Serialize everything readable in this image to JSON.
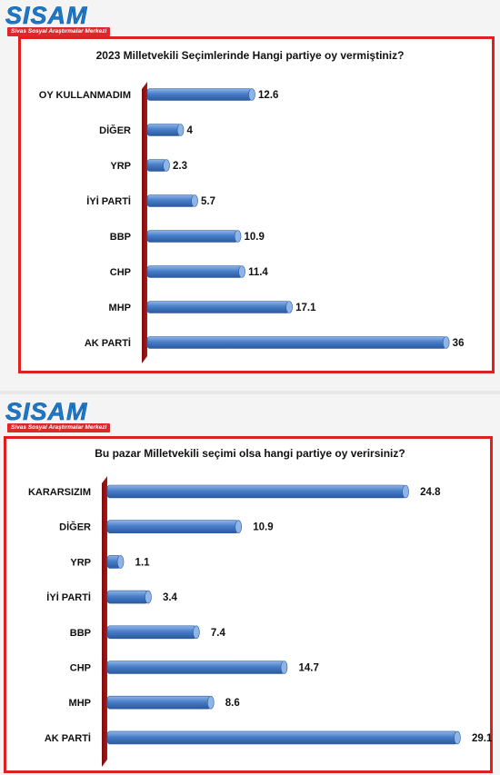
{
  "brand": {
    "logo_text": "SISAM",
    "logo_subtitle": "Sivas Sosyal Araştırmalar Merkezi"
  },
  "colors": {
    "frame": "#e0201c",
    "bar": "#4a7ec9",
    "bar_light": "#8fb5e6",
    "bar_dark": "#2a5a9e",
    "wall": "#b01818"
  },
  "chart_data": [
    {
      "type": "bar",
      "orientation": "horizontal",
      "title": "2023 Milletvekili Seçimlerinde Hangi partiye oy vermiştiniz?",
      "categories": [
        "OY KULLANMADIM",
        "DİĞER",
        "YRP",
        "İYİ PARTİ",
        "BBP",
        "CHP",
        "MHP",
        "AK PARTİ"
      ],
      "values": [
        12.6,
        4,
        2.3,
        5.7,
        10.9,
        11.4,
        17.1,
        36
      ],
      "value_labels": [
        "12.6",
        "4",
        "2.3",
        "5.7",
        "10.9",
        "11.4",
        "17.1",
        "36"
      ],
      "xlim": [
        0,
        40
      ],
      "grid": false,
      "legend": "none"
    },
    {
      "type": "bar",
      "orientation": "horizontal",
      "title": "Bu pazar Milletvekili seçimi olsa hangi partiye oy verirsiniz?",
      "categories": [
        "KARARSIZIM",
        "DİĞER",
        "YRP",
        "İYİ PARTİ",
        "BBP",
        "CHP",
        "MHP",
        "AK PARTİ"
      ],
      "values": [
        24.8,
        10.9,
        1.1,
        3.4,
        7.4,
        14.7,
        8.6,
        29.1
      ],
      "value_labels": [
        "24.8",
        "10.9",
        "1.1",
        "3.4",
        "7.4",
        "14.7",
        "8.6",
        "29.1"
      ],
      "xlim": [
        0,
        29.1
      ],
      "grid": false,
      "legend": "none"
    }
  ]
}
